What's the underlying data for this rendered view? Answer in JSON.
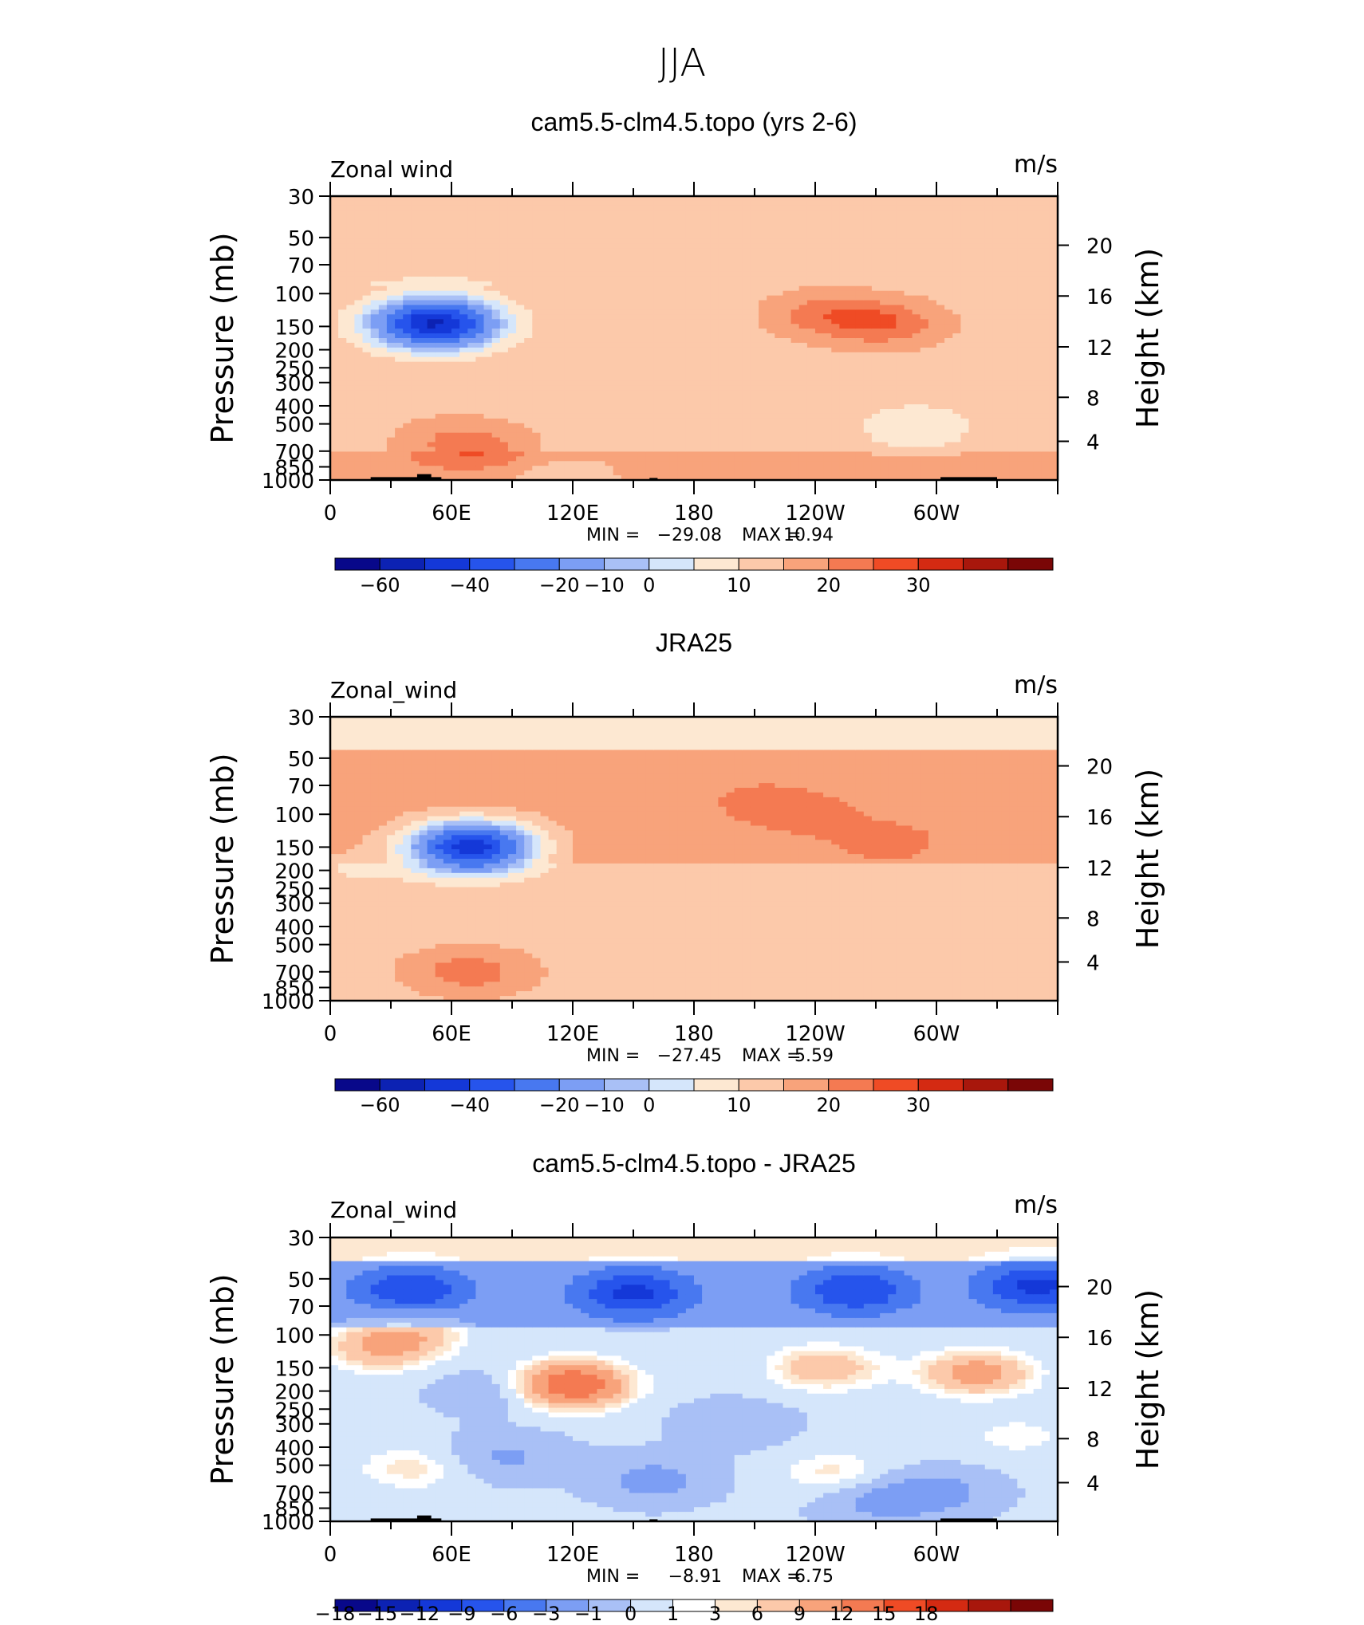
{
  "page_title": "JJA",
  "colors": {
    "ramp": [
      "#08088a",
      "#0c22b3",
      "#1438d8",
      "#2654ec",
      "#4878f0",
      "#7c9ef4",
      "#a9c0f6",
      "#d5e6fb",
      "#fde8d2",
      "#fcc9aa",
      "#f8a37b",
      "#f47a52",
      "#ef4b25",
      "#d42a12",
      "#a8170c",
      "#7a0606"
    ],
    "white_band": "#ffffff"
  },
  "panels": [
    {
      "title": "cam5.5-clm4.5.topo (yrs 2-6)",
      "left_label": "Zonal wind",
      "right_label": "m/s",
      "ylabel": "Pressure (mb)",
      "y2label": "Height (km)",
      "yticks": [
        "30",
        "50",
        "70",
        "100",
        "150",
        "200",
        "250",
        "300",
        "400",
        "500",
        "700",
        "850",
        "1000"
      ],
      "y2ticks": [
        "20",
        "16",
        "12",
        "8",
        "4"
      ],
      "xticks": [
        "0",
        "60E",
        "120E",
        "180",
        "120W",
        "60W"
      ],
      "stats": {
        "min_label": "MIN =",
        "min": "−29.08",
        "max_label": "MAX =",
        "max": "10.94"
      },
      "colorbar_labels": [
        "−60",
        "−40",
        "−20",
        "−10",
        "0",
        "10",
        "20",
        "30"
      ]
    },
    {
      "title": "JRA25",
      "left_label": "Zonal_wind",
      "right_label": "m/s",
      "ylabel": "Pressure (mb)",
      "y2label": "Height (km)",
      "yticks": [
        "30",
        "50",
        "70",
        "100",
        "150",
        "200",
        "250",
        "300",
        "400",
        "500",
        "700",
        "850",
        "1000"
      ],
      "y2ticks": [
        "20",
        "16",
        "12",
        "8",
        "4"
      ],
      "xticks": [
        "0",
        "60E",
        "120E",
        "180",
        "120W",
        "60W"
      ],
      "stats": {
        "min_label": "MIN =",
        "min": "−27.45",
        "max_label": "MAX =",
        "max": "5.59"
      },
      "colorbar_labels": [
        "−60",
        "−40",
        "−20",
        "−10",
        "0",
        "10",
        "20",
        "30"
      ]
    },
    {
      "title": "cam5.5-clm4.5.topo - JRA25",
      "left_label": "Zonal_wind",
      "right_label": "m/s",
      "ylabel": "Pressure (mb)",
      "y2label": "Height (km)",
      "yticks": [
        "30",
        "50",
        "70",
        "100",
        "150",
        "200",
        "250",
        "300",
        "400",
        "500",
        "700",
        "850",
        "1000"
      ],
      "y2ticks": [
        "20",
        "16",
        "12",
        "8",
        "4"
      ],
      "xticks": [
        "0",
        "60E",
        "120E",
        "180",
        "120W",
        "60W"
      ],
      "stats": {
        "min_label": "MIN =",
        "min": "−8.91",
        "max_label": "MAX =",
        "max": "6.75"
      },
      "colorbar_labels": [
        "−18",
        "−15",
        "−12",
        "−9",
        "−6",
        "−3",
        "−1",
        "0",
        "1",
        "3",
        "6",
        "9",
        "12",
        "15",
        "18"
      ]
    }
  ],
  "chart_data": [
    {
      "type": "heatmap",
      "title": "cam5.5-clm4.5.topo (yrs 2-6)",
      "xlabel": "",
      "ylabel": "Pressure (mb)",
      "y2label": "Height (km)",
      "xlim": [
        0,
        360
      ],
      "ylim": [
        1000,
        30
      ],
      "yscale": "log",
      "units": "m/s",
      "min": -29.08,
      "max": 10.94,
      "levels": [
        -70,
        -60,
        -50,
        -40,
        -30,
        -20,
        -15,
        -10,
        -5,
        0,
        5,
        10,
        15,
        20,
        25,
        30
      ],
      "features": [
        {
          "lon": 245,
          "p": 130,
          "value": 9
        },
        {
          "lon": 275,
          "p": 145,
          "value": 10.9
        },
        {
          "lon": 60,
          "p": 600,
          "value": 5
        },
        {
          "lon": 75,
          "p": 700,
          "value": 7
        },
        {
          "lon": 55,
          "p": 145,
          "value": -29
        },
        {
          "lon": 50,
          "p": 135,
          "value": -12
        },
        {
          "lon": 48,
          "p": 150,
          "value": -20
        },
        {
          "lon": 195,
          "p": 450,
          "value": -3
        },
        {
          "lon": 290,
          "p": 520,
          "value": -7
        },
        {
          "lon": 110,
          "p": 1000,
          "value": -4
        },
        {
          "lon": 30,
          "p": 950,
          "value": 2
        }
      ]
    },
    {
      "type": "heatmap",
      "title": "JRA25",
      "xlabel": "",
      "ylabel": "Pressure (mb)",
      "y2label": "Height (km)",
      "xlim": [
        0,
        360
      ],
      "ylim": [
        1000,
        30
      ],
      "yscale": "log",
      "units": "m/s",
      "min": -27.45,
      "max": 5.59,
      "levels": [
        -70,
        -60,
        -50,
        -40,
        -30,
        -20,
        -15,
        -10,
        -5,
        0,
        5,
        10,
        15,
        20,
        25,
        30
      ],
      "features": [
        {
          "lon": 235,
          "p": 100,
          "value": 5
        },
        {
          "lon": 212,
          "p": 85,
          "value": 4
        },
        {
          "lon": 275,
          "p": 140,
          "value": 5.5
        },
        {
          "lon": 60,
          "p": 700,
          "value": 4.5
        },
        {
          "lon": 75,
          "p": 700,
          "value": 6
        },
        {
          "lon": 72,
          "p": 145,
          "value": -27.4
        },
        {
          "lon": 66,
          "p": 150,
          "value": -20
        },
        {
          "lon": 70,
          "p": 160,
          "value": -12
        },
        {
          "lon": 215,
          "p": 450,
          "value": -3
        },
        {
          "lon": 300,
          "p": 520,
          "value": -2
        },
        {
          "lon": 200,
          "p": 1000,
          "value": -2
        },
        {
          "lon": 10,
          "p": 200,
          "value": -3
        }
      ]
    },
    {
      "type": "heatmap",
      "title": "cam5.5-clm4.5.topo - JRA25",
      "xlabel": "",
      "ylabel": "Pressure (mb)",
      "y2label": "Height (km)",
      "xlim": [
        0,
        360
      ],
      "ylim": [
        1000,
        30
      ],
      "yscale": "log",
      "units": "m/s",
      "min": -8.91,
      "max": 6.75,
      "levels": [
        -21,
        -18,
        -15,
        -12,
        -9,
        -6,
        -3,
        -1,
        0,
        1,
        3,
        6,
        9,
        12,
        15,
        18,
        21
      ],
      "features": [
        {
          "lon": 150,
          "p": 60,
          "value": -8.9
        },
        {
          "lon": 40,
          "p": 58,
          "value": -8
        },
        {
          "lon": 260,
          "p": 58,
          "value": -8
        },
        {
          "lon": 350,
          "p": 55,
          "value": -9
        },
        {
          "lon": 25,
          "p": 120,
          "value": 5
        },
        {
          "lon": 40,
          "p": 95,
          "value": 4
        },
        {
          "lon": 120,
          "p": 180,
          "value": 5.5
        },
        {
          "lon": 118,
          "p": 190,
          "value": 6.5
        },
        {
          "lon": 245,
          "p": 150,
          "value": 5
        },
        {
          "lon": 320,
          "p": 160,
          "value": 6.75
        },
        {
          "lon": 80,
          "p": 200,
          "value": -3
        },
        {
          "lon": 88,
          "p": 450,
          "value": -4
        },
        {
          "lon": 160,
          "p": 600,
          "value": -5
        },
        {
          "lon": 250,
          "p": 550,
          "value": 3
        },
        {
          "lon": 40,
          "p": 520,
          "value": 3
        },
        {
          "lon": 270,
          "p": 800,
          "value": -4
        },
        {
          "lon": 300,
          "p": 700,
          "value": -5
        },
        {
          "lon": 200,
          "p": 300,
          "value": -3
        },
        {
          "lon": 340,
          "p": 350,
          "value": 2
        }
      ]
    }
  ]
}
